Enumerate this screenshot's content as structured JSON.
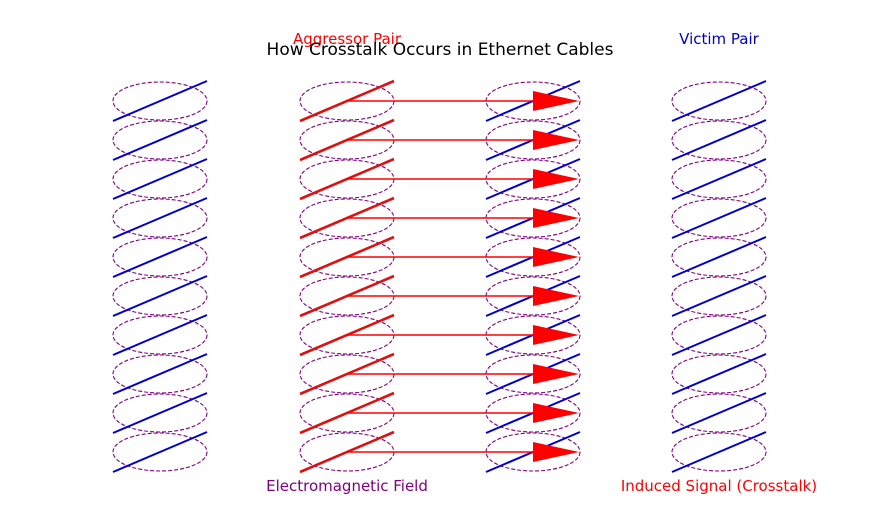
{
  "title": "How Crosstalk Occurs in Ethernet Cables",
  "labels": {
    "aggressor": "Aggressor Pair",
    "victim": "Victim Pair",
    "field": "Electromagnetic Field",
    "induced": "Induced Signal (Crosstalk)"
  },
  "colors": {
    "field_ellipse": "#800080",
    "victim_wire": "#0000cc",
    "aggressor_wire": "#dd1111",
    "arrow": "#ff0000",
    "label_aggressor": "#ff0000",
    "label_victim": "#0000cc",
    "label_field": "#800080",
    "label_induced": "#ff0000"
  },
  "cables": [
    {
      "name": "outer-left-cable",
      "wire_color": "victim_wire"
    },
    {
      "name": "aggressor-cable",
      "wire_color": "aggressor_wire"
    },
    {
      "name": "inner-victim-cable",
      "wire_color": "victim_wire"
    },
    {
      "name": "outer-right-cable",
      "wire_color": "victim_wire"
    }
  ],
  "twist_count": 10,
  "coupling_arrow_count": 10
}
